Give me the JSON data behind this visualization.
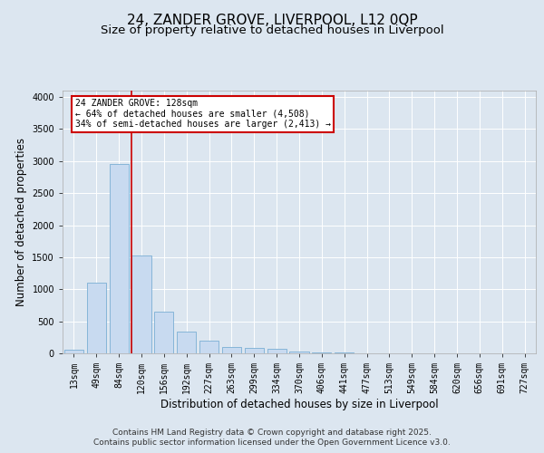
{
  "title_line1": "24, ZANDER GROVE, LIVERPOOL, L12 0QP",
  "title_line2": "Size of property relative to detached houses in Liverpool",
  "xlabel": "Distribution of detached houses by size in Liverpool",
  "ylabel": "Number of detached properties",
  "categories": [
    "13sqm",
    "49sqm",
    "84sqm",
    "120sqm",
    "156sqm",
    "192sqm",
    "227sqm",
    "263sqm",
    "299sqm",
    "334sqm",
    "370sqm",
    "406sqm",
    "441sqm",
    "477sqm",
    "513sqm",
    "549sqm",
    "584sqm",
    "620sqm",
    "656sqm",
    "691sqm",
    "727sqm"
  ],
  "values": [
    55,
    1100,
    2950,
    1530,
    650,
    340,
    195,
    95,
    90,
    65,
    30,
    15,
    10,
    5,
    2,
    1,
    1,
    0,
    0,
    0,
    0
  ],
  "bar_color": "#c8daf0",
  "bar_edge_color": "#7aaed4",
  "vline_color": "#cc0000",
  "vline_pos": 2.575,
  "annotation_text": "24 ZANDER GROVE: 128sqm\n← 64% of detached houses are smaller (4,508)\n34% of semi-detached houses are larger (2,413) →",
  "annotation_box_color": "#cc0000",
  "annotation_box_facecolor": "#ffffff",
  "ylim": [
    0,
    4100
  ],
  "yticks": [
    0,
    500,
    1000,
    1500,
    2000,
    2500,
    3000,
    3500,
    4000
  ],
  "fig_bg": "#dce6f0",
  "plot_bg": "#dce6f0",
  "grid_color": "#ffffff",
  "title_fontsize": 11,
  "subtitle_fontsize": 9.5,
  "axis_label_fontsize": 8.5,
  "tick_fontsize": 7,
  "annot_fontsize": 7,
  "footer_fontsize": 6.5,
  "footer_line1": "Contains HM Land Registry data © Crown copyright and database right 2025.",
  "footer_line2": "Contains public sector information licensed under the Open Government Licence v3.0."
}
